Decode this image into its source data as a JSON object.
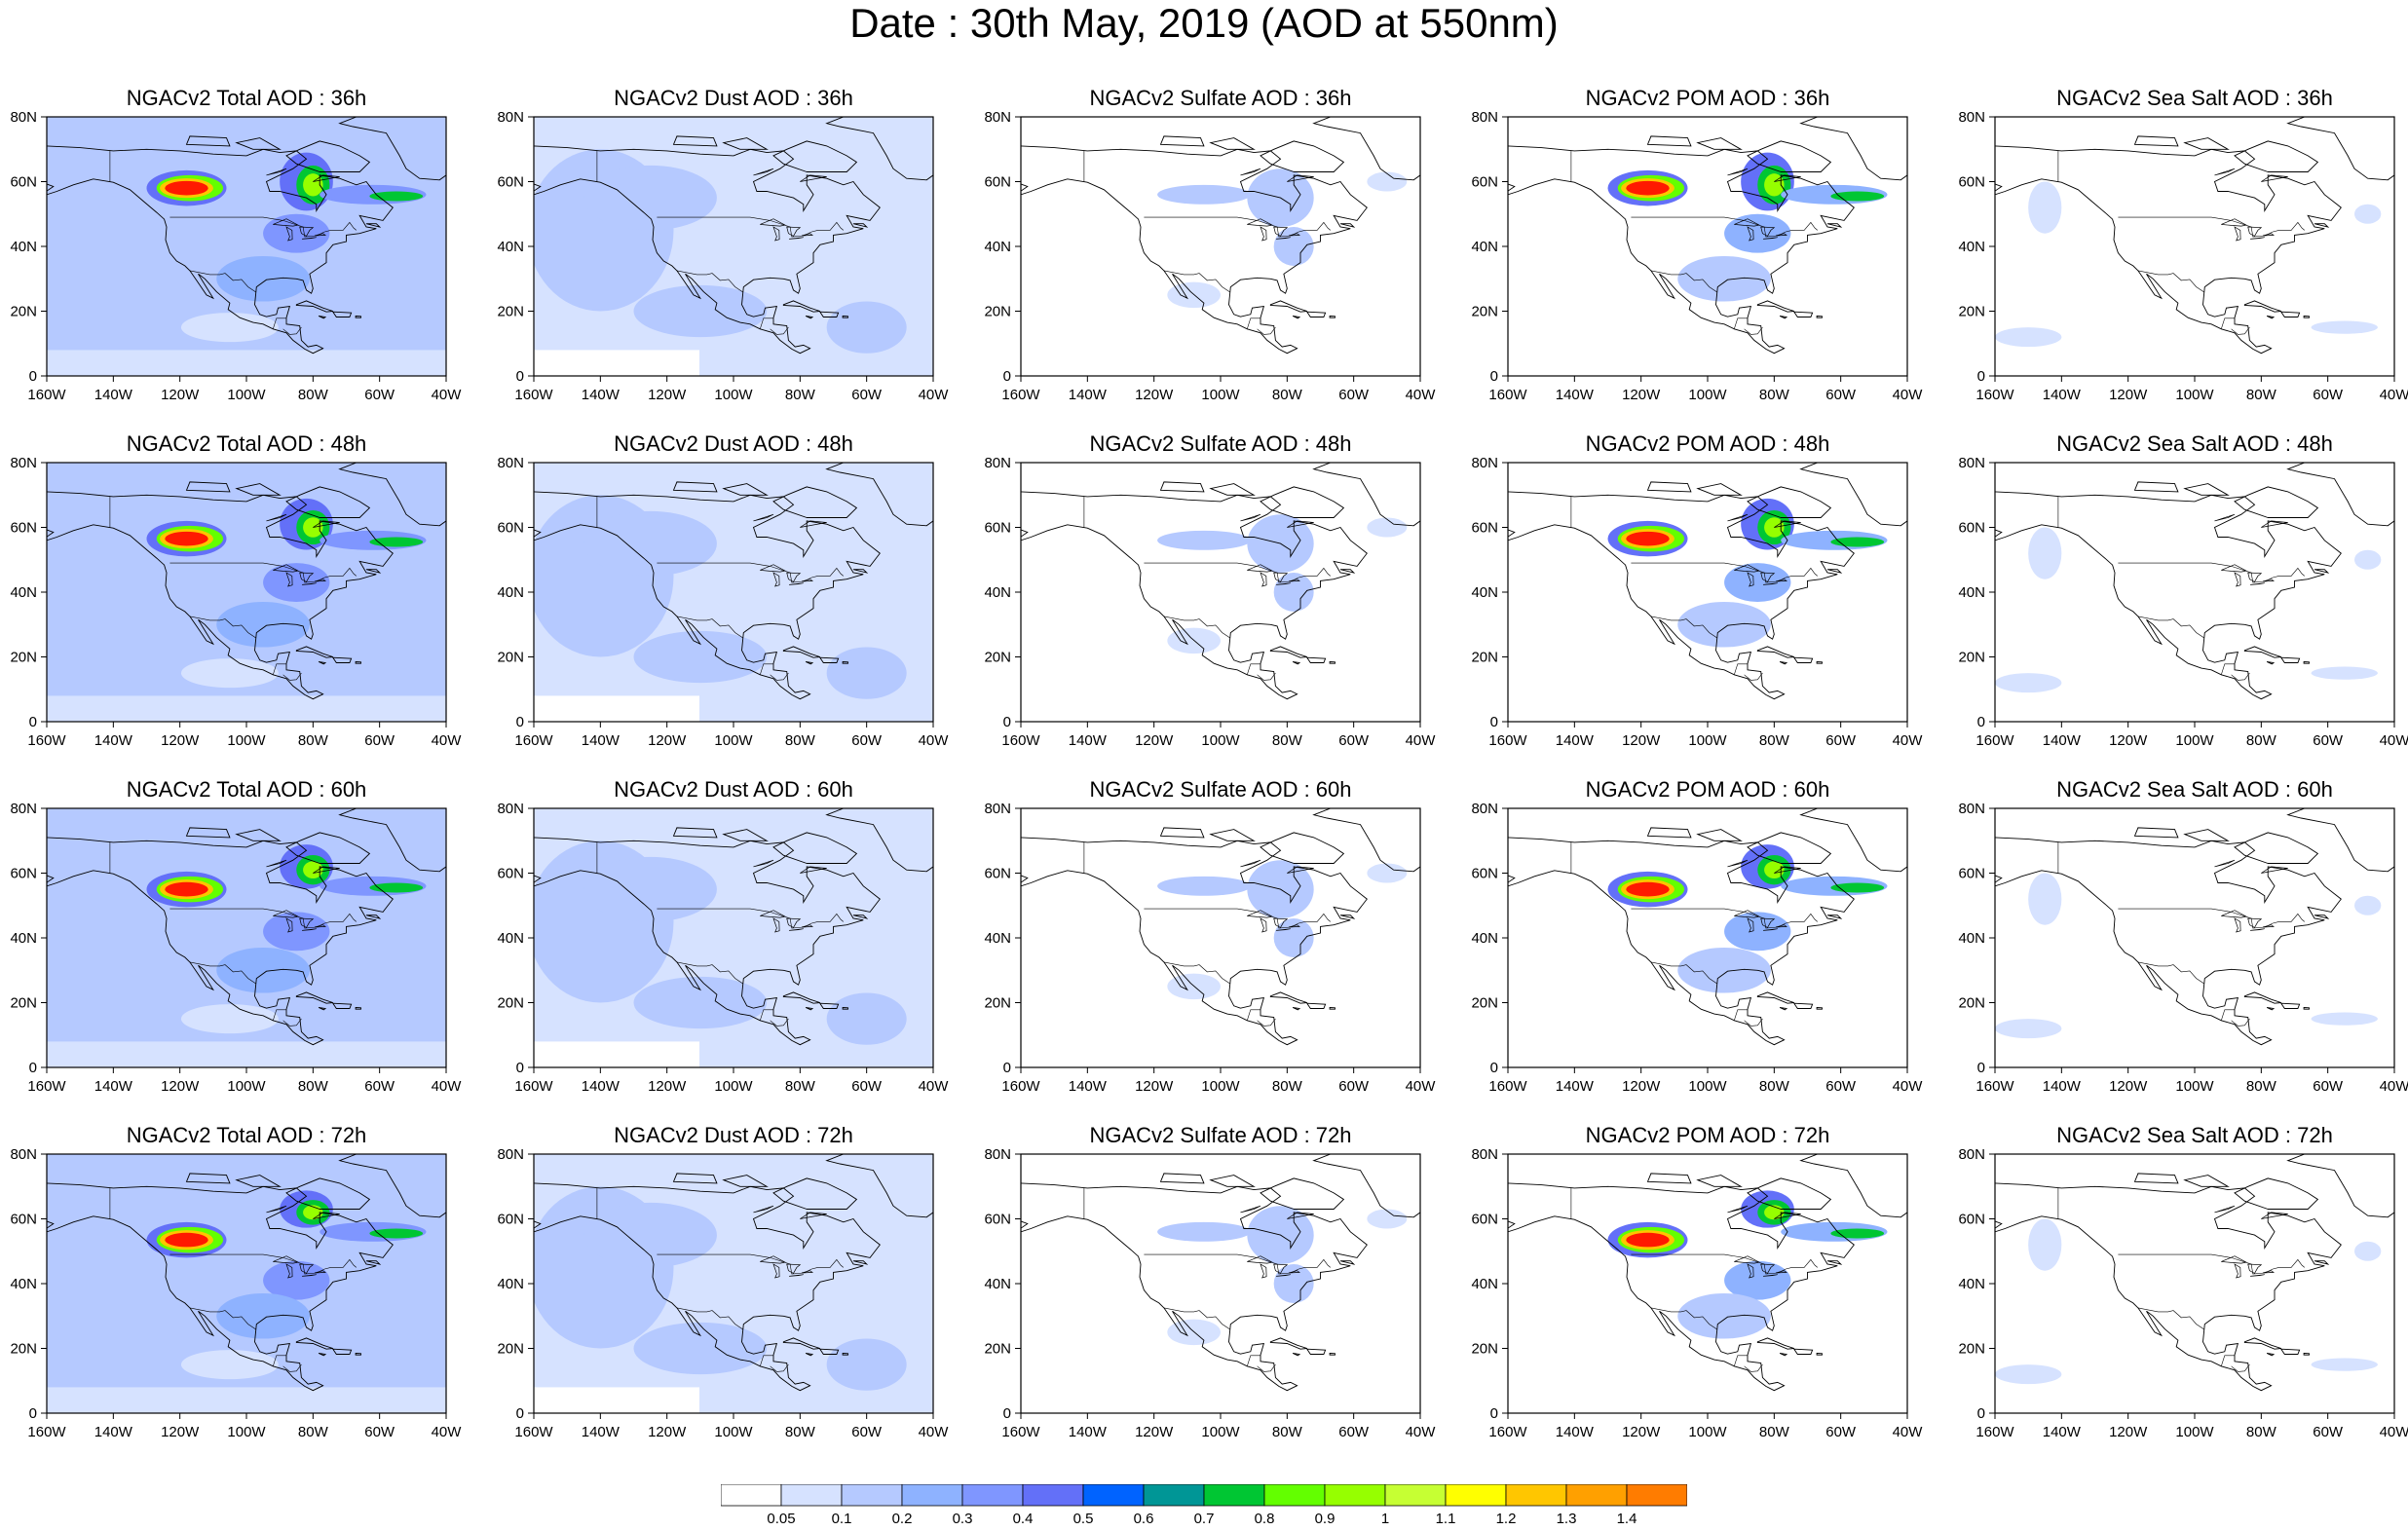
{
  "title": "Date : 30th May, 2019 (AOD at 550nm)",
  "columns": [
    {
      "id": "total",
      "label_prefix": "NGACv2 Total AOD"
    },
    {
      "id": "dust",
      "label_prefix": "NGACv2 Dust AOD"
    },
    {
      "id": "sulfate",
      "label_prefix": "NGACv2 Sulfate AOD"
    },
    {
      "id": "pom",
      "label_prefix": "NGACv2 POM AOD"
    },
    {
      "id": "seasalt",
      "label_prefix": "NGACv2 Sea Salt AOD"
    }
  ],
  "forecast_hours": [
    "36h",
    "48h",
    "60h",
    "72h"
  ],
  "panel_titles": [
    [
      "NGACv2 Total AOD : 36h",
      "NGACv2 Dust AOD : 36h",
      "NGACv2 Sulfate AOD : 36h",
      "NGACv2 POM AOD : 36h",
      "NGACv2 Sea Salt AOD : 36h"
    ],
    [
      "NGACv2 Total AOD : 48h",
      "NGACv2 Dust AOD : 48h",
      "NGACv2 Sulfate AOD : 48h",
      "NGACv2 POM AOD : 48h",
      "NGACv2 Sea Salt AOD : 48h"
    ],
    [
      "NGACv2 Total AOD : 60h",
      "NGACv2 Dust AOD : 60h",
      "NGACv2 Sulfate AOD : 60h",
      "NGACv2 POM AOD : 60h",
      "NGACv2 Sea Salt AOD : 60h"
    ],
    [
      "NGACv2 Total AOD : 72h",
      "NGACv2 Dust AOD : 72h",
      "NGACv2 Sulfate AOD : 72h",
      "NGACv2 POM AOD : 72h",
      "NGACv2 Sea Salt  AOD : 72h"
    ]
  ],
  "map": {
    "lon_range": [
      -160,
      -40
    ],
    "lat_range": [
      0,
      80
    ],
    "lon_ticks": [
      "160W",
      "140W",
      "120W",
      "100W",
      "80W",
      "60W",
      "40W"
    ],
    "lat_ticks": [
      "0",
      "20N",
      "40N",
      "60N",
      "80N"
    ]
  },
  "colorbar": {
    "labels": [
      "0.05",
      "0.1",
      "0.2",
      "0.3",
      "0.4",
      "0.5",
      "0.6",
      "0.7",
      "0.8",
      "0.9",
      "1",
      "1.1",
      "1.2",
      "1.3",
      "1.4"
    ],
    "colors": [
      "#ffffff",
      "#d6e2ff",
      "#b5c9ff",
      "#8eb2ff",
      "#7f96ff",
      "#6370f8",
      "#0063ff",
      "#009696",
      "#00c633",
      "#63ff00",
      "#96ff00",
      "#c6ff33",
      "#ffff00",
      "#ffc600",
      "#ffa000",
      "#ff7c00",
      "#ff1900"
    ]
  },
  "background_levels": {
    "total": "#b5c9ff",
    "dust": "#d6e2ff",
    "sulfate": "#ffffff",
    "pom": "#ffffff",
    "seasalt": "#ffffff"
  }
}
